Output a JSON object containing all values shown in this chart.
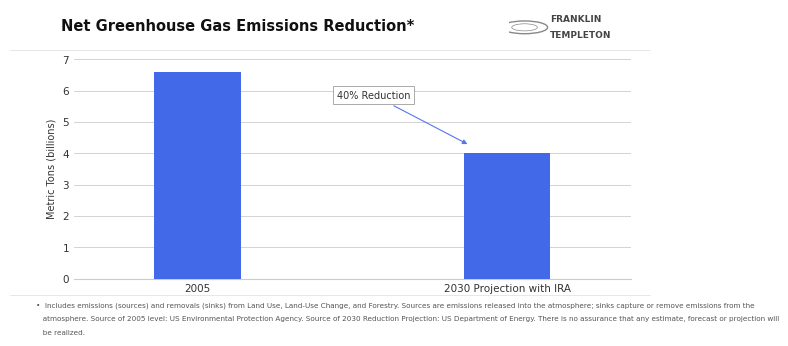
{
  "title": "Net Greenhouse Gas Emissions Reduction*",
  "categories": [
    "2005",
    "2030 Projection with IRA"
  ],
  "values": [
    6.6,
    4.0
  ],
  "bar_color": "#4169e8",
  "ylabel": "Metric Tons (billions)",
  "ylim": [
    0,
    7
  ],
  "yticks": [
    0,
    1,
    2,
    3,
    4,
    5,
    6,
    7
  ],
  "annotation_text": "40% Reduction",
  "bg_color": "#ffffff",
  "footnote_line1": "•  Includes emissions (sources) and removals (sinks) from Land Use, Land-Use Change, and Forestry. Sources are emissions released into the atmosphere; sinks capture or remove emissions from the",
  "footnote_line2": "   atmosphere. Source of 2005 level: US Environmental Protection Agency. Source of 2030 Reduction Projection: US Department of Energy. There is no assurance that any estimate, forecast or projection will",
  "footnote_line3": "   be realized.",
  "footnote_fontsize": 5.2,
  "title_fontsize": 10.5,
  "ylabel_fontsize": 7,
  "tick_fontsize": 7.5,
  "logo_text1": "FRANKLIN",
  "logo_text2": "TEMPLETON",
  "grid_color": "#cccccc",
  "bar_width": 0.28,
  "x_positions": [
    0,
    1
  ]
}
